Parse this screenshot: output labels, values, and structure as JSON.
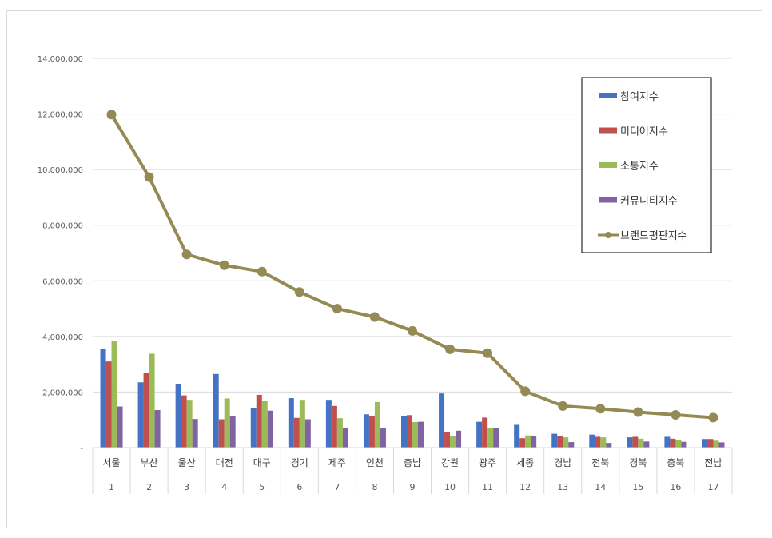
{
  "chart_data": {
    "type": "bar",
    "categories": [
      "서울",
      "부산",
      "울산",
      "대전",
      "대구",
      "경기",
      "제주",
      "인천",
      "충남",
      "강원",
      "광주",
      "세종",
      "경남",
      "전북",
      "경북",
      "충북",
      "전남"
    ],
    "ranks": [
      "1",
      "2",
      "3",
      "4",
      "5",
      "6",
      "7",
      "8",
      "9",
      "10",
      "11",
      "12",
      "13",
      "14",
      "15",
      "16",
      "17"
    ],
    "y_ticks": [
      "-",
      "2,000,000",
      "4,000,000",
      "6,000,000",
      "8,000,000",
      "10,000,000",
      "12,000,000",
      "14,000,000"
    ],
    "ylim": [
      0,
      14000000
    ],
    "grid": true,
    "legend_position": "top-right",
    "series": [
      {
        "name": "참여지수",
        "kind": "bar",
        "color": "#4472c4",
        "values": [
          3550000,
          2350000,
          2300000,
          2650000,
          1430000,
          1780000,
          1720000,
          1200000,
          1150000,
          1950000,
          930000,
          820000,
          500000,
          470000,
          370000,
          390000,
          310000
        ]
      },
      {
        "name": "미디어지수",
        "kind": "bar",
        "color": "#c0504d",
        "values": [
          3100000,
          2680000,
          1880000,
          1020000,
          1900000,
          1070000,
          1500000,
          1120000,
          1170000,
          550000,
          1080000,
          340000,
          430000,
          390000,
          390000,
          320000,
          310000
        ]
      },
      {
        "name": "소통지수",
        "kind": "bar",
        "color": "#9bbb59",
        "values": [
          3850000,
          3380000,
          1720000,
          1770000,
          1680000,
          1720000,
          1060000,
          1640000,
          920000,
          420000,
          720000,
          440000,
          370000,
          370000,
          320000,
          270000,
          250000
        ]
      },
      {
        "name": "커뮤니티지수",
        "kind": "bar",
        "color": "#8064a2",
        "values": [
          1480000,
          1350000,
          1030000,
          1120000,
          1330000,
          1020000,
          720000,
          710000,
          930000,
          610000,
          700000,
          430000,
          200000,
          170000,
          220000,
          210000,
          190000
        ]
      },
      {
        "name": "브랜드평판지수",
        "kind": "line",
        "color": "#948a54",
        "values": [
          11980000,
          9730000,
          6950000,
          6560000,
          6330000,
          5600000,
          5000000,
          4700000,
          4200000,
          3540000,
          3400000,
          2030000,
          1500000,
          1400000,
          1280000,
          1180000,
          1080000
        ]
      }
    ]
  }
}
